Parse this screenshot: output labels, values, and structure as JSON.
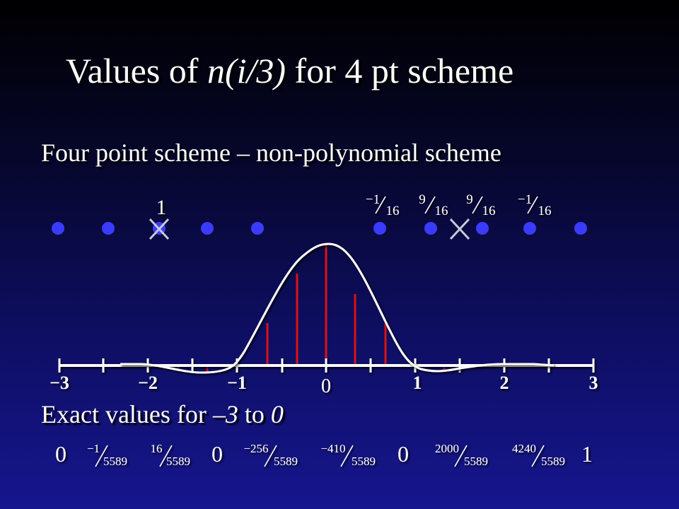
{
  "title": {
    "prefix": "Values of ",
    "italic": "n(i/3)",
    "suffix": " for 4 pt scheme"
  },
  "subtitle": "Four point scheme – non-polynomial scheme",
  "exact_heading": {
    "prefix": "Exact values for ",
    "italic_a": "–3",
    "middle": " to ",
    "italic_b": "0"
  },
  "left_mask": {
    "label": "1"
  },
  "right_mask": {
    "weights": [
      {
        "num": "−1",
        "den": "16"
      },
      {
        "num": "9",
        "den": "16"
      },
      {
        "num": "9",
        "den": "16"
      },
      {
        "num": "−1",
        "den": "16"
      }
    ]
  },
  "axis": {
    "ticks": [
      {
        "x": -3,
        "label": "−3"
      },
      {
        "x": -2,
        "label": "−2"
      },
      {
        "x": -1,
        "label": "−1"
      },
      {
        "x": 0,
        "label": "0"
      },
      {
        "x": 1,
        "label": "1"
      },
      {
        "x": 2,
        "label": "2"
      },
      {
        "x": 3,
        "label": "3"
      }
    ]
  },
  "exact_values": [
    {
      "whole": "0"
    },
    {
      "num": "−1",
      "den": "5589"
    },
    {
      "num": "16",
      "den": "5589"
    },
    {
      "whole": "0"
    },
    {
      "num": "−256",
      "den": "5589"
    },
    {
      "num": "−410",
      "den": "5589"
    },
    {
      "whole": "0"
    },
    {
      "num": "2000",
      "den": "5589"
    },
    {
      "num": "4240",
      "den": "5589"
    },
    {
      "whole": "1"
    }
  ],
  "colors": {
    "background_top": "#000000",
    "background_bottom": "#16168e",
    "dot": "#3b3bff",
    "stem": "#dd1111",
    "line": "#ffffff"
  }
}
